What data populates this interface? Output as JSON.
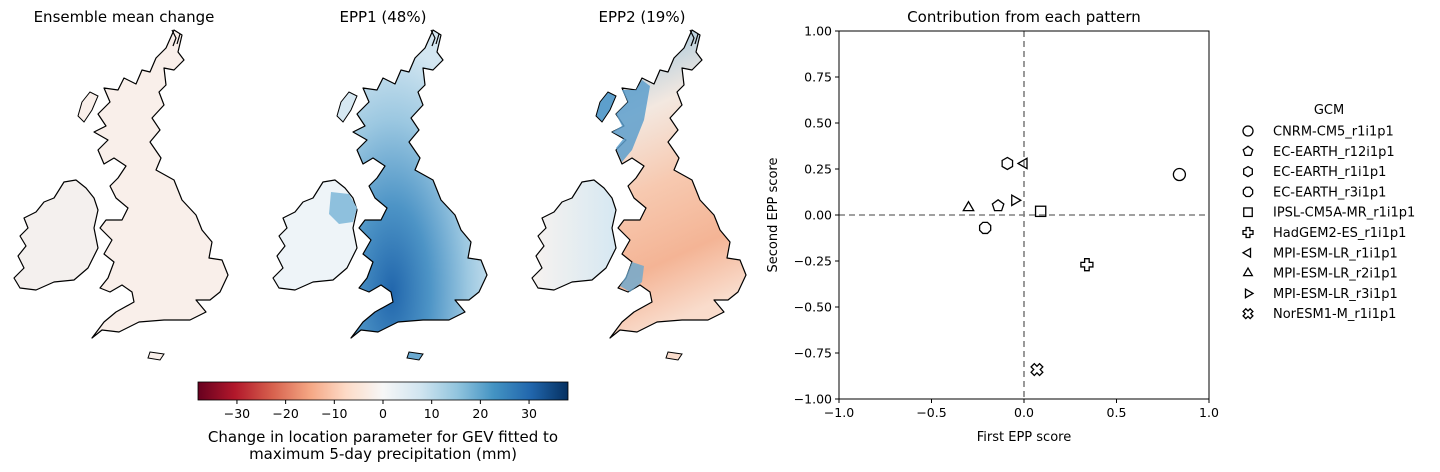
{
  "maps": [
    {
      "title": "Ensemble mean change",
      "field": "ensemble-mean"
    },
    {
      "title": "EPP1 (48%)",
      "field": "epp1"
    },
    {
      "title": "EPP2 (19%)",
      "field": "epp2"
    }
  ],
  "colorbar": {
    "cmap": "RdBu",
    "min": -38,
    "max": 38,
    "ticks": [
      -30,
      -20,
      -10,
      0,
      10,
      20,
      30
    ],
    "label_line1": "Change in location parameter for GEV fitted to",
    "label_line2": "maximum 5-day precipitation (mm)"
  },
  "chart_data": {
    "type": "scatter",
    "title": "Contribution from each pattern",
    "xlabel": "First EPP score",
    "ylabel": "Second EPP score",
    "xlim": [
      -1.0,
      1.0
    ],
    "ylim": [
      -1.0,
      1.0
    ],
    "xticks": [
      -1.0,
      -0.5,
      0.0,
      0.5,
      1.0
    ],
    "yticks": [
      -1.0,
      -0.75,
      -0.5,
      -0.25,
      0.0,
      0.25,
      0.5,
      0.75,
      1.0
    ],
    "reference_lines": {
      "x": 0.0,
      "y": 0.0,
      "style": "dashed",
      "color": "#808080"
    },
    "grid": false,
    "legend": {
      "title": "GCM",
      "placement": "outside-right"
    },
    "series": [
      {
        "name": "CNRM-CM5_r1i1p1",
        "marker": "circle",
        "x": 0.84,
        "y": 0.22
      },
      {
        "name": "EC-EARTH_r12i1p1",
        "marker": "pentagon",
        "x": -0.14,
        "y": 0.05
      },
      {
        "name": "EC-EARTH_r1i1p1",
        "marker": "hexagon",
        "x": -0.09,
        "y": 0.28
      },
      {
        "name": "EC-EARTH_r3i1p1",
        "marker": "octagon",
        "x": -0.21,
        "y": -0.07
      },
      {
        "name": "IPSL-CM5A-MR_r1i1p1",
        "marker": "square",
        "x": 0.09,
        "y": 0.02
      },
      {
        "name": "HadGEM2-ES_r1i1p1",
        "marker": "plus",
        "x": 0.34,
        "y": -0.27
      },
      {
        "name": "MPI-ESM-LR_r1i1p1",
        "marker": "triangle-left",
        "x": 0.0,
        "y": 0.28
      },
      {
        "name": "MPI-ESM-LR_r2i1p1",
        "marker": "triangle-up",
        "x": -0.3,
        "y": 0.04
      },
      {
        "name": "MPI-ESM-LR_r3i1p1",
        "marker": "triangle-right",
        "x": -0.05,
        "y": 0.08
      },
      {
        "name": "NorESM1-M_r1i1p1",
        "marker": "x-filled",
        "x": 0.07,
        "y": -0.84
      }
    ]
  }
}
